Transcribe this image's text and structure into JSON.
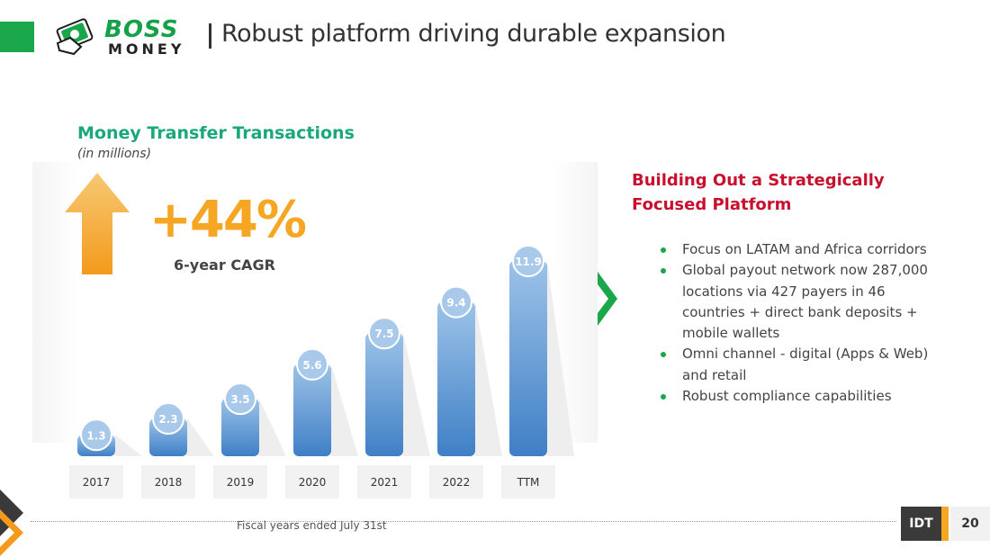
{
  "header": {
    "logo_line1": "BOSS",
    "logo_line2": "MONEY",
    "title": "Robust platform driving durable expansion"
  },
  "chart_title": "Money Transfer Transactions",
  "chart_subtitle": "(in millions)",
  "cagr": {
    "value": "+44%",
    "label": "6-year CAGR"
  },
  "chart_data": {
    "type": "bar",
    "title": "Money Transfer Transactions",
    "subtitle": "(in millions)",
    "categories": [
      "2017",
      "2018",
      "2019",
      "2020",
      "2021",
      "2022",
      "TTM"
    ],
    "values": [
      1.3,
      2.3,
      3.5,
      5.6,
      7.5,
      9.4,
      11.9
    ],
    "ylim": [
      0,
      12
    ],
    "grid": false,
    "bar_color": "#5b9bd5"
  },
  "footnote": "Fiscal years  ended July 31st",
  "right_panel": {
    "heading": "Building Out a Strategically Focused Platform",
    "bullets": [
      "Focus on LATAM and Africa corridors",
      "Global payout network now 287,000 locations via 427 payers in 46 countries  + direct bank deposits + mobile wallets",
      "Omni channel - digital (Apps & Web) and retail",
      "Robust compliance capabilities"
    ]
  },
  "footer": {
    "brand": "IDT",
    "page": "20"
  },
  "colors": {
    "brand_green": "#1aa64a",
    "heading_teal": "#1aa87a",
    "accent_orange": "#f5a623",
    "heading_red": "#c8102e"
  }
}
